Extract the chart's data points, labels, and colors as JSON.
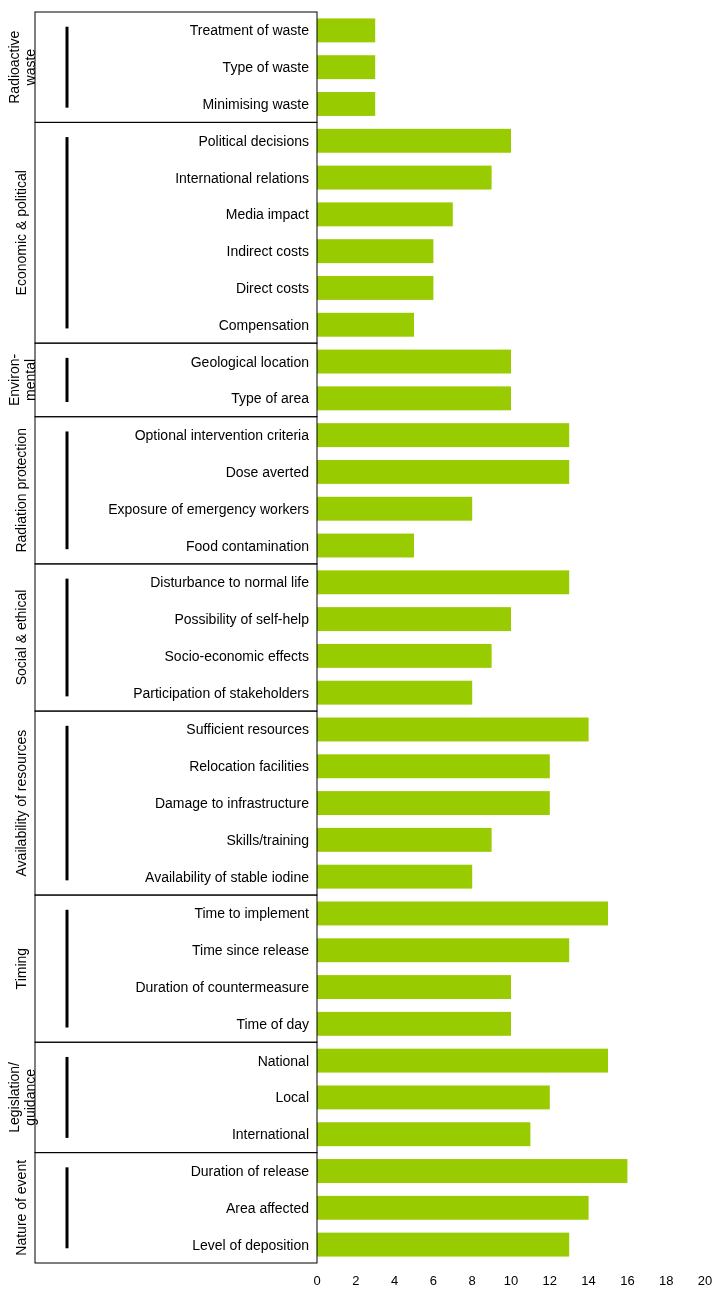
{
  "chart_data": [
    {
      "type": "bar",
      "orientation": "horizontal",
      "ylabel": "Radioactive waste",
      "color": "#99cc00",
      "categories": [
        "Treatment of waste",
        "Type of waste",
        "Minimising waste"
      ],
      "values": [
        3,
        3,
        3
      ],
      "xlim": [
        0,
        20
      ],
      "xticks": [
        0,
        2,
        4,
        6,
        8,
        10,
        12,
        14,
        16,
        18,
        20
      ],
      "tick_labels": "y"
    },
    {
      "type": "bar",
      "orientation": "horizontal",
      "ylabel": "Economic & political",
      "color": "#99cc00",
      "categories": [
        "Political decisions",
        "International relations",
        "Media impact",
        "Indirect costs",
        "Direct costs",
        "Compensation"
      ],
      "values": [
        10,
        9,
        7,
        6,
        6,
        5
      ],
      "xlim": [
        0,
        20
      ],
      "xticks": [
        0,
        2,
        4,
        6,
        8,
        10,
        12,
        14,
        16,
        18,
        20
      ],
      "tick_labels": "y"
    },
    {
      "type": "bar",
      "orientation": "horizontal",
      "ylabel": "Environ-mental",
      "color": "#99cc00",
      "categories": [
        "Geological location",
        "Type of area"
      ],
      "values": [
        10,
        10
      ],
      "xlim": [
        0,
        20
      ],
      "xticks": [
        0,
        2,
        4,
        6,
        8,
        10,
        12,
        14,
        16,
        18,
        20
      ],
      "tick_labels": "y"
    },
    {
      "type": "bar",
      "orientation": "horizontal",
      "ylabel": "Radiation protection",
      "color": "#99cc00",
      "categories": [
        "Optional intervention criteria",
        "Dose averted",
        "Exposure of emergency workers",
        "Food contamination"
      ],
      "values": [
        13,
        13,
        8,
        5
      ],
      "xlim": [
        0,
        20
      ],
      "xticks": [
        0,
        2,
        4,
        6,
        8,
        10,
        12,
        14,
        16,
        18,
        20
      ],
      "tick_labels": "y"
    },
    {
      "type": "bar",
      "orientation": "horizontal",
      "ylabel": "Social & ethical",
      "color": "#99cc00",
      "categories": [
        "Disturbance to normal life",
        "Possibility of self-help",
        "Socio-economic effects",
        "Participation of stakeholders"
      ],
      "values": [
        13,
        10,
        9,
        8
      ],
      "xlim": [
        0,
        20
      ],
      "xticks": [
        0,
        2,
        4,
        6,
        8,
        10,
        12,
        14,
        16,
        18,
        20
      ],
      "tick_labels": "y"
    },
    {
      "type": "bar",
      "orientation": "horizontal",
      "ylabel": "Availability of resources",
      "color": "#99cc00",
      "categories": [
        "Sufficient resources",
        "Relocation facilities",
        "Damage to infrastructure",
        "Skills/training",
        "Availability of stable iodine"
      ],
      "values": [
        14,
        12,
        12,
        9,
        8
      ],
      "xlim": [
        0,
        20
      ],
      "xticks": [
        0,
        2,
        4,
        6,
        8,
        10,
        12,
        14,
        16,
        18,
        20
      ],
      "tick_labels": "y"
    },
    {
      "type": "bar",
      "orientation": "horizontal",
      "ylabel": "Timing",
      "color": "#99cc00",
      "categories": [
        "Time to implement",
        "Time since release",
        "Duration of countermeasure",
        "Time of day"
      ],
      "values": [
        15,
        13,
        10,
        10
      ],
      "xlim": [
        0,
        20
      ],
      "xticks": [
        0,
        2,
        4,
        6,
        8,
        10,
        12,
        14,
        16,
        18,
        20
      ],
      "tick_labels": "y"
    },
    {
      "type": "bar",
      "orientation": "horizontal",
      "ylabel": "Legislation/guidance",
      "color": "#99cc00",
      "categories": [
        "National",
        "Local",
        "International"
      ],
      "values": [
        15,
        12,
        11
      ],
      "xlim": [
        0,
        20
      ],
      "xticks": [
        0,
        2,
        4,
        6,
        8,
        10,
        12,
        14,
        16,
        18,
        20
      ],
      "tick_labels": "y"
    },
    {
      "type": "bar",
      "orientation": "horizontal",
      "ylabel": "Nature of event",
      "color": "#99cc00",
      "categories": [
        "Duration of release",
        "Area affected",
        "Level of deposition"
      ],
      "values": [
        16,
        14,
        13
      ],
      "xlim": [
        0,
        20
      ],
      "xticks": [
        0,
        2,
        4,
        6,
        8,
        10,
        12,
        14,
        16,
        18,
        20
      ]
    }
  ]
}
